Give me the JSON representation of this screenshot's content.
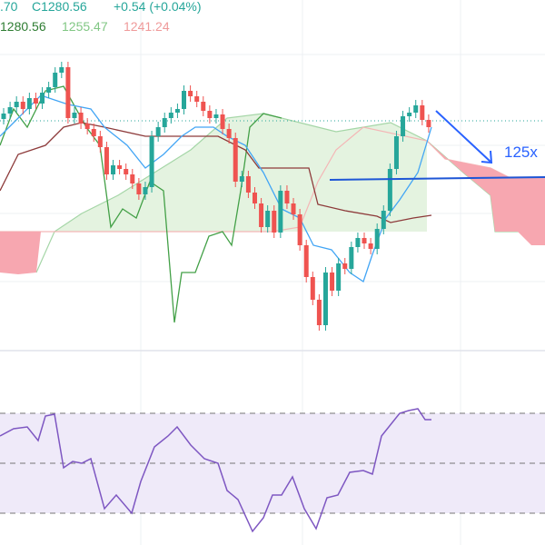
{
  "header": {
    "ohlc": [
      ".70",
      "C1280.56",
      "+0.54 (+0.04%)"
    ],
    "ichimoku": [
      "1280.56",
      "1255.47",
      "1241.24"
    ]
  },
  "annotation": "125x"
}
